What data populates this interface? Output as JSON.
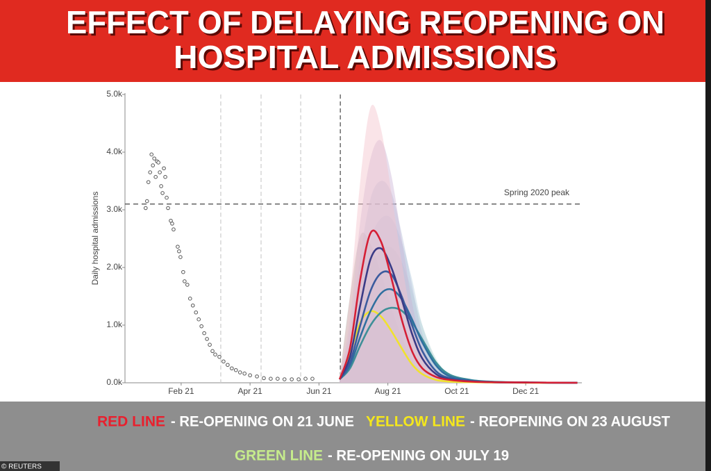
{
  "header": {
    "title_lines": [
      "EFFECT OF DELAYING REOPENING ON",
      "HOSPITAL ADMISSIONS"
    ]
  },
  "chart_data": {
    "type": "line",
    "y_label": "Daily hospital admissions",
    "ylim": [
      0,
      5000
    ],
    "yticks": [
      {
        "value": 0,
        "label": "0.0k"
      },
      {
        "value": 1000,
        "label": "1.0k"
      },
      {
        "value": 2000,
        "label": "2.0k"
      },
      {
        "value": 3000,
        "label": "3.0k"
      },
      {
        "value": 4000,
        "label": "4.0k"
      },
      {
        "value": 5000,
        "label": "5.0k"
      }
    ],
    "xlim": [
      0.37,
      13.63
    ],
    "xticks": [
      {
        "value": 2,
        "label": "Feb 21"
      },
      {
        "value": 4,
        "label": "Apr 21"
      },
      {
        "value": 6,
        "label": "Jun 21"
      },
      {
        "value": 8,
        "label": "Aug 21"
      },
      {
        "value": 10,
        "label": "Oct 21"
      },
      {
        "value": 12,
        "label": "Dec 21"
      }
    ],
    "vlines": [
      3.15,
      4.32,
      5.47,
      6.62
    ],
    "vline_colors": [
      "#cfcfcf",
      "#cfcfcf",
      "#cfcfcf",
      "#555555"
    ],
    "hline": {
      "value": 3100,
      "label": "Spring 2020 peak"
    },
    "observed": {
      "color": "#555555",
      "x": [
        0.97,
        1.01,
        1.05,
        1.1,
        1.14,
        1.18,
        1.22,
        1.26,
        1.3,
        1.34,
        1.38,
        1.42,
        1.46,
        1.5,
        1.54,
        1.58,
        1.62,
        1.7,
        1.74,
        1.78,
        1.9,
        1.94,
        1.98,
        2.06,
        2.1,
        2.18,
        2.26,
        2.34,
        2.43,
        2.51,
        2.59,
        2.67,
        2.75,
        2.83,
        2.91,
        2.99,
        3.11,
        3.23,
        3.35,
        3.47,
        3.59,
        3.71,
        3.84,
        4.0,
        4.2,
        4.4,
        4.6,
        4.8,
        5.0,
        5.21,
        5.41,
        5.61,
        5.81
      ],
      "values": [
        3030,
        3150,
        3480,
        3650,
        3960,
        3770,
        3890,
        3570,
        3840,
        3820,
        3650,
        3410,
        3290,
        3720,
        3570,
        3210,
        3030,
        2810,
        2760,
        2660,
        2360,
        2280,
        2180,
        1920,
        1760,
        1700,
        1460,
        1340,
        1220,
        1100,
        980,
        860,
        760,
        660,
        550,
        490,
        450,
        370,
        310,
        250,
        220,
        180,
        160,
        130,
        110,
        80,
        70,
        70,
        60,
        60,
        60,
        70,
        70
      ]
    },
    "x": [
      6.6,
      6.9,
      7.2,
      7.5,
      7.8,
      8.1,
      8.4,
      8.7,
      9.0,
      9.4,
      9.8,
      10.4,
      11,
      12,
      13.5
    ],
    "series": [
      {
        "color": "#f0e22e",
        "band_color": "#a9a9a0",
        "values": [
          60,
          500,
          1050,
          1240,
          1150,
          900,
          600,
          320,
          150,
          50,
          20,
          10,
          5,
          0,
          0
        ],
        "band_upper": [
          100,
          1500,
          2550,
          2400,
          1900,
          1300,
          800,
          400,
          180,
          60,
          20,
          10,
          5,
          0,
          0
        ]
      },
      {
        "color": "#3f8f98",
        "band_color": "#bcdcd4",
        "values": [
          60,
          250,
          650,
          1000,
          1220,
          1300,
          1250,
          1050,
          750,
          350,
          140,
          50,
          20,
          5,
          0
        ],
        "band_upper": [
          100,
          600,
          1400,
          2000,
          2300,
          2350,
          2100,
          1600,
          1000,
          420,
          150,
          50,
          20,
          5,
          0
        ]
      },
      {
        "color": "#2f6f9f",
        "band_color": "#b7d0df",
        "values": [
          60,
          300,
          800,
          1250,
          1550,
          1620,
          1450,
          1100,
          700,
          300,
          110,
          40,
          15,
          5,
          0
        ],
        "band_upper": [
          100,
          700,
          1700,
          2500,
          2850,
          2850,
          2450,
          1800,
          1000,
          380,
          130,
          50,
          15,
          5,
          0
        ]
      },
      {
        "color": "#3b5b9e",
        "band_color": "#b9c1dc",
        "values": [
          60,
          350,
          1000,
          1600,
          1900,
          1880,
          1500,
          1000,
          550,
          200,
          80,
          30,
          10,
          5,
          0
        ],
        "band_upper": [
          100,
          900,
          2200,
          3200,
          3500,
          3300,
          2600,
          1700,
          850,
          300,
          100,
          40,
          15,
          5,
          0
        ]
      },
      {
        "color": "#3a3b86",
        "band_color": "#cdb6d8",
        "values": [
          60,
          450,
          1350,
          2150,
          2330,
          2000,
          1450,
          850,
          420,
          150,
          60,
          25,
          10,
          5,
          0
        ],
        "band_upper": [
          100,
          1100,
          2800,
          3900,
          4200,
          3600,
          2500,
          1400,
          650,
          220,
          80,
          30,
          10,
          5,
          0
        ]
      },
      {
        "color": "#d51f35",
        "band_color": "#f5c4cb",
        "values": [
          60,
          600,
          1800,
          2600,
          2450,
          1820,
          1100,
          550,
          250,
          100,
          50,
          20,
          10,
          5,
          0
        ],
        "band_upper": [
          100,
          1500,
          3500,
          4780,
          4400,
          3300,
          2100,
          1100,
          500,
          180,
          70,
          30,
          10,
          5,
          0
        ]
      }
    ]
  },
  "footer": {
    "legend": [
      {
        "label": "RED LINE",
        "color": "#e8202e",
        "text": "- RE-OPENING ON 21 JUNE"
      },
      {
        "label": "YELLOW LINE",
        "color": "#f4e71c",
        "text": "- REOPENING ON 23 AUGUST"
      },
      {
        "label": "GREEN LINE",
        "color": "#c6ec8c",
        "text": "- RE-OPENING ON JULY 19"
      }
    ],
    "credit": "© REUTERS"
  }
}
